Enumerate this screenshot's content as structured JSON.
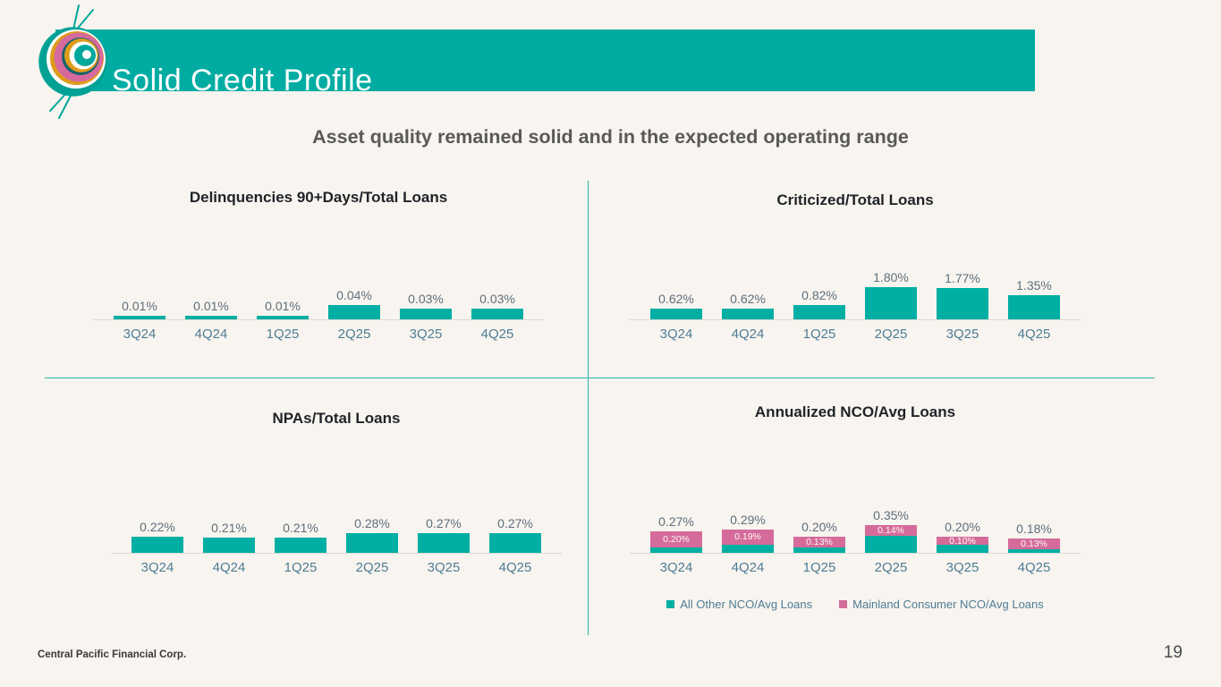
{
  "slide": {
    "title": "Solid Credit Profile",
    "subtitle": "Asset quality remained solid and in the expected operating range",
    "footer_company": "Central Pacific Financial Corp.",
    "page_number": "19"
  },
  "colors": {
    "background": "#F8F4EF",
    "banner": "#00ACA2",
    "bar_teal": "#00AFA3",
    "bar_pink": "#D56B9B",
    "divider_teal": "#2CB4AA",
    "axis_line": "#DCD8D3",
    "chart_title_text": "#1F2328",
    "subtitle_text": "#595959",
    "value_label_text": "#5E6F7D",
    "axis_label_text": "#4E7D95",
    "banner_text": "#FFFFFF"
  },
  "chart_data": [
    {
      "type": "bar",
      "title": "Delinquencies 90+Days/Total Loans",
      "categories": [
        "3Q24",
        "4Q24",
        "1Q25",
        "2Q25",
        "3Q25",
        "4Q25"
      ],
      "values": [
        0.01,
        0.01,
        0.01,
        0.04,
        0.03,
        0.03
      ],
      "labels": [
        "0.01%",
        "0.01%",
        "0.01%",
        "0.04%",
        "0.03%",
        "0.03%"
      ],
      "unit": "%",
      "ylim": [
        0,
        0.05
      ],
      "grid": false,
      "bar_color": "#00AFA3"
    },
    {
      "type": "bar",
      "title": "Criticized/Total Loans",
      "categories": [
        "3Q24",
        "4Q24",
        "1Q25",
        "2Q25",
        "3Q25",
        "4Q25"
      ],
      "values": [
        0.62,
        0.62,
        0.82,
        1.8,
        1.77,
        1.35
      ],
      "labels": [
        "0.62%",
        "0.62%",
        "0.82%",
        "1.80%",
        "1.77%",
        "1.35%"
      ],
      "unit": "%",
      "ylim": [
        0,
        2.0
      ],
      "grid": false,
      "bar_color": "#00AFA3"
    },
    {
      "type": "bar",
      "title": "NPAs/Total Loans",
      "categories": [
        "3Q24",
        "4Q24",
        "1Q25",
        "2Q25",
        "3Q25",
        "4Q25"
      ],
      "values": [
        0.22,
        0.21,
        0.21,
        0.28,
        0.27,
        0.27
      ],
      "labels": [
        "0.22%",
        "0.21%",
        "0.21%",
        "0.28%",
        "0.27%",
        "0.27%"
      ],
      "unit": "%",
      "ylim": [
        0,
        0.35
      ],
      "grid": false,
      "bar_color": "#00AFA3"
    },
    {
      "type": "stacked-bar",
      "title": "Annualized NCO/Avg Loans",
      "categories": [
        "3Q24",
        "4Q24",
        "1Q25",
        "2Q25",
        "3Q25",
        "4Q25"
      ],
      "series": [
        {
          "name": "All Other NCO/Avg Loans",
          "color": "#00AFA3",
          "values": [
            0.07,
            0.1,
            0.07,
            0.21,
            0.1,
            0.05
          ],
          "labels": [
            "",
            "",
            "",
            "",
            "",
            ""
          ]
        },
        {
          "name": "Mainland Consumer NCO/Avg Loans",
          "color": "#D56B9B",
          "values": [
            0.2,
            0.19,
            0.13,
            0.14,
            0.1,
            0.13
          ],
          "labels": [
            "0.20%",
            "0.19%",
            "0.13%",
            "0.14%",
            "0.10%",
            "0.13%"
          ]
        }
      ],
      "totals": [
        0.27,
        0.29,
        0.2,
        0.35,
        0.2,
        0.18
      ],
      "total_labels": [
        "0.27%",
        "0.29%",
        "0.20%",
        "0.35%",
        "0.20%",
        "0.18%"
      ],
      "unit": "%",
      "ylim": [
        0,
        0.4
      ],
      "grid": false,
      "legend_position": "bottom"
    }
  ]
}
